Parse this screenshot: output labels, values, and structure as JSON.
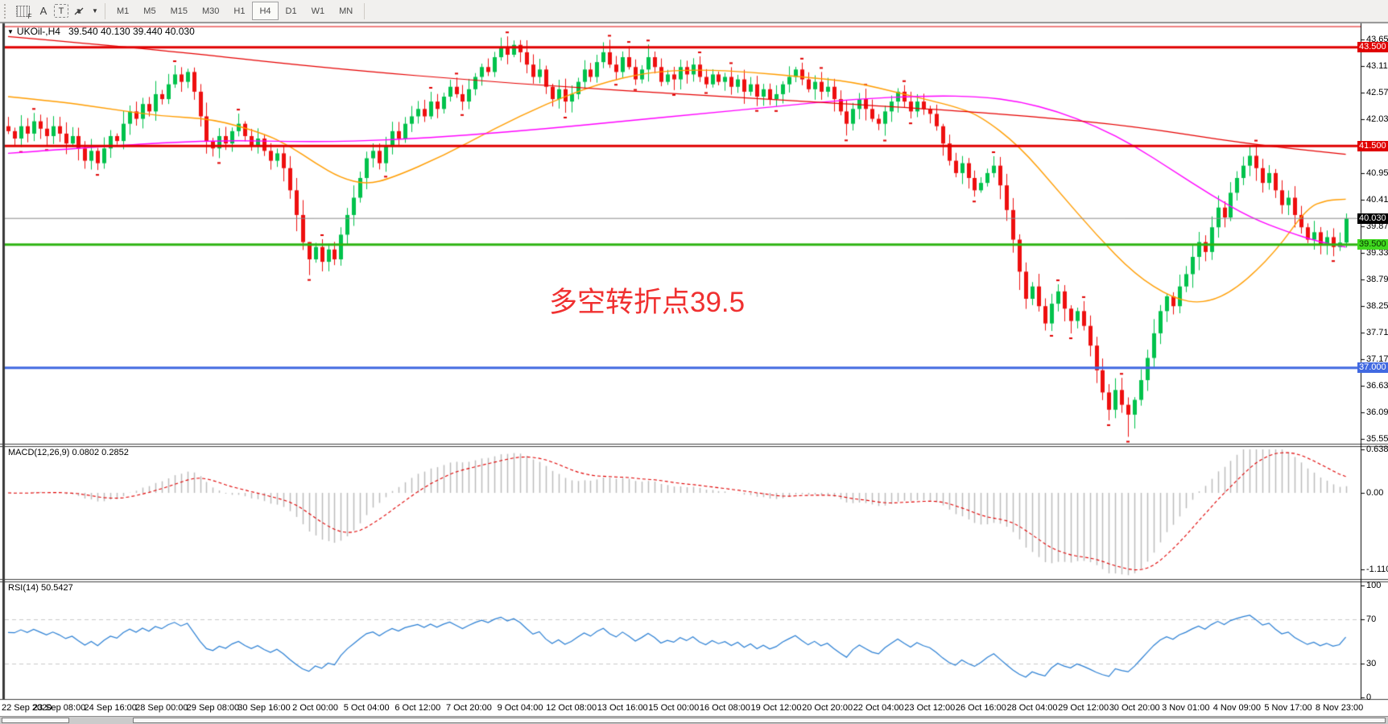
{
  "header": {
    "symbol": "UKOil-,H4",
    "ohlc": "39.540 40.130 39.440 40.030"
  },
  "annotation": {
    "text": "多空转折点39.5",
    "color": "#f03030"
  },
  "toolbar": {
    "tools": [
      {
        "name": "grid-properties-icon",
        "glyph": "F"
      },
      {
        "name": "font-a-icon",
        "glyph": "A"
      },
      {
        "name": "text-label-icon",
        "glyph": "T"
      },
      {
        "name": "arrows-objects-icon",
        "glyph": "arrows"
      },
      {
        "name": "objects-dropdown-caret",
        "glyph": "▼"
      }
    ],
    "timeframes": [
      "M1",
      "M5",
      "M15",
      "M30",
      "H1",
      "H4",
      "D1",
      "W1",
      "MN"
    ],
    "active_timeframe": "H4"
  },
  "chart_data": [
    {
      "type": "candlestick",
      "symbol": "UKOil-",
      "timeframe": "H4",
      "title": "UKOil-,H4",
      "current_bar": {
        "open": 39.54,
        "high": 40.13,
        "low": 39.44,
        "close": 40.03
      },
      "ylim": [
        35.46,
        43.97
      ],
      "y_ticks": [
        "43.655",
        "43.115",
        "42.575",
        "42.035",
        "40.955",
        "40.415",
        "39.875",
        "39.335",
        "38.795",
        "38.255",
        "37.715",
        "37.175",
        "36.635",
        "36.095",
        "35.555"
      ],
      "x_labels": [
        "22 Sep 2020",
        "23 Sep 08:00",
        "24 Sep 16:00",
        "28 Sep 00:00",
        "29 Sep 08:00",
        "30 Sep 16:00",
        "2 Oct 00:00",
        "5 Oct 04:00",
        "6 Oct 12:00",
        "7 Oct 20:00",
        "9 Oct 04:00",
        "12 Oct 08:00",
        "13 Oct 16:00",
        "15 Oct 00:00",
        "16 Oct 08:00",
        "19 Oct 12:00",
        "20 Oct 20:00",
        "22 Oct 04:00",
        "23 Oct 12:00",
        "26 Oct 16:00",
        "28 Oct 04:00",
        "29 Oct 12:00",
        "30 Oct 20:00",
        "3 Nov 01:00",
        "4 Nov 09:00",
        "5 Nov 17:00",
        "8 Nov 23:00"
      ],
      "bars_per_label": 8,
      "up_color": "#00c24b",
      "down_color": "#ee0f0f",
      "fractal_color": "#e00000",
      "open_first": 41.9,
      "closes": [
        41.8,
        41.65,
        41.9,
        41.75,
        42.0,
        41.85,
        41.7,
        41.9,
        41.75,
        41.55,
        41.7,
        41.45,
        41.2,
        41.4,
        41.15,
        41.45,
        41.7,
        41.6,
        41.95,
        42.2,
        42.05,
        42.35,
        42.2,
        42.55,
        42.45,
        42.75,
        42.95,
        42.8,
        43.0,
        42.6,
        42.1,
        41.6,
        41.45,
        41.7,
        41.55,
        41.8,
        41.95,
        41.7,
        41.5,
        41.65,
        41.4,
        41.2,
        41.35,
        41.05,
        40.6,
        40.1,
        39.55,
        39.2,
        39.45,
        39.15,
        39.4,
        39.2,
        39.7,
        40.1,
        40.45,
        40.85,
        41.25,
        41.4,
        41.15,
        41.5,
        41.8,
        41.65,
        41.95,
        42.1,
        42.25,
        42.1,
        42.4,
        42.25,
        42.5,
        42.7,
        42.55,
        42.4,
        42.65,
        42.9,
        43.1,
        43.0,
        43.3,
        43.5,
        43.35,
        43.55,
        43.4,
        43.15,
        42.9,
        43.05,
        42.7,
        42.45,
        42.65,
        42.4,
        42.55,
        42.8,
        43.05,
        42.9,
        43.2,
        43.4,
        43.15,
        43.0,
        43.3,
        43.1,
        42.85,
        43.05,
        43.3,
        43.1,
        42.8,
        42.95,
        42.85,
        43.1,
        42.95,
        43.15,
        42.9,
        42.75,
        42.95,
        42.8,
        42.9,
        42.7,
        42.85,
        42.6,
        42.75,
        42.5,
        42.65,
        42.45,
        42.55,
        42.75,
        42.9,
        43.05,
        42.85,
        42.65,
        42.8,
        42.6,
        42.7,
        42.45,
        42.2,
        41.95,
        42.25,
        42.45,
        42.25,
        42.05,
        41.95,
        42.2,
        42.4,
        42.6,
        42.4,
        42.2,
        42.4,
        42.25,
        42.15,
        41.9,
        41.55,
        41.2,
        40.95,
        41.15,
        40.85,
        40.6,
        40.75,
        40.95,
        41.1,
        40.7,
        40.2,
        39.6,
        38.95,
        38.4,
        38.65,
        38.25,
        37.9,
        38.3,
        38.55,
        38.2,
        37.95,
        38.15,
        37.85,
        37.45,
        36.95,
        36.5,
        36.15,
        36.55,
        36.25,
        36.05,
        36.35,
        36.75,
        37.2,
        37.7,
        38.15,
        38.45,
        38.25,
        38.65,
        38.9,
        39.25,
        39.55,
        39.35,
        39.85,
        40.25,
        40.05,
        40.55,
        40.85,
        41.1,
        41.3,
        41.05,
        40.75,
        40.95,
        40.6,
        40.3,
        40.45,
        40.1,
        39.85,
        39.6,
        39.75,
        39.5,
        39.65,
        39.45,
        39.54,
        40.03
      ],
      "wick_overrides": {
        "47": [
          39.55,
          38.88
        ],
        "79": [
          43.64,
          43.3
        ],
        "175": [
          36.4,
          35.6
        ],
        "209": [
          40.13,
          39.44
        ]
      },
      "horizontal_lines": [
        {
          "price": 43.92,
          "label": null,
          "color": "#e00000",
          "width": 1
        },
        {
          "price": 43.5,
          "label": "43.500",
          "color": "#e00000",
          "width": 3,
          "tag_bg": "#e00000",
          "tag_fg": "#ffffff"
        },
        {
          "price": 41.5,
          "label": "41.500",
          "color": "#e00000",
          "width": 3,
          "tag_bg": "#e00000",
          "tag_fg": "#ffffff"
        },
        {
          "price": 40.03,
          "label": "40.030",
          "color": "#8a8a8a",
          "width": 1,
          "tag_bg": "#000000",
          "tag_fg": "#ffffff"
        },
        {
          "price": 39.5,
          "label": "39.500",
          "color": "#2eb412",
          "width": 3,
          "tag_bg": "#40d920",
          "tag_fg": "#083300"
        },
        {
          "price": 37.0,
          "label": "37.000",
          "color": "#4169e1",
          "width": 3,
          "tag_bg": "#4169e1",
          "tag_fg": "#ffffff"
        }
      ],
      "moving_averages": [
        {
          "name": "ma-fast-orange",
          "color": "#ff9d00",
          "width": 1.4,
          "points": [
            [
              0,
              42.5
            ],
            [
              8,
              42.4
            ],
            [
              16,
              42.25
            ],
            [
              24,
              42.1
            ],
            [
              32,
              42.05
            ],
            [
              40,
              41.75
            ],
            [
              44,
              41.5
            ],
            [
              48,
              41.15
            ],
            [
              52,
              40.85
            ],
            [
              56,
              40.72
            ],
            [
              60,
              40.85
            ],
            [
              68,
              41.3
            ],
            [
              76,
              41.85
            ],
            [
              84,
              42.35
            ],
            [
              92,
              42.75
            ],
            [
              100,
              43.0
            ],
            [
              108,
              43.05
            ],
            [
              116,
              43.0
            ],
            [
              124,
              42.9
            ],
            [
              132,
              42.8
            ],
            [
              140,
              42.55
            ],
            [
              148,
              42.3
            ],
            [
              152,
              42.1
            ],
            [
              158,
              41.5
            ],
            [
              164,
              40.6
            ],
            [
              170,
              39.7
            ],
            [
              176,
              38.9
            ],
            [
              182,
              38.4
            ],
            [
              187,
              38.3
            ],
            [
              192,
              38.6
            ],
            [
              198,
              39.35
            ],
            [
              203,
              40.25
            ],
            [
              206,
              40.4
            ],
            [
              209,
              40.42
            ]
          ]
        },
        {
          "name": "ma-mid-magenta",
          "color": "#ff00ff",
          "width": 1.4,
          "points": [
            [
              0,
              41.35
            ],
            [
              16,
              41.5
            ],
            [
              32,
              41.62
            ],
            [
              48,
              41.58
            ],
            [
              60,
              41.62
            ],
            [
              72,
              41.72
            ],
            [
              84,
              41.85
            ],
            [
              96,
              42.0
            ],
            [
              108,
              42.15
            ],
            [
              120,
              42.3
            ],
            [
              132,
              42.45
            ],
            [
              144,
              42.52
            ],
            [
              152,
              42.5
            ],
            [
              158,
              42.4
            ],
            [
              164,
              42.2
            ],
            [
              170,
              41.9
            ],
            [
              176,
              41.5
            ],
            [
              182,
              41.0
            ],
            [
              188,
              40.5
            ],
            [
              194,
              40.05
            ],
            [
              200,
              39.75
            ],
            [
              205,
              39.55
            ],
            [
              209,
              39.45
            ]
          ]
        },
        {
          "name": "ma-slow-red",
          "color": "#e60000",
          "width": 1.2,
          "points": [
            [
              0,
              43.72
            ],
            [
              24,
              43.45
            ],
            [
              48,
              43.1
            ],
            [
              80,
              42.75
            ],
            [
              112,
              42.5
            ],
            [
              144,
              42.25
            ],
            [
              160,
              42.1
            ],
            [
              176,
              41.9
            ],
            [
              193,
              41.55
            ],
            [
              209,
              41.33
            ]
          ]
        }
      ]
    },
    {
      "type": "macd",
      "display": "MACD(12,26,9) 0.0802 0.2852",
      "params": [
        12,
        26,
        9
      ],
      "value": 0.0802,
      "signal": 0.2852,
      "axis_labels": [
        "0.6386",
        "0.00",
        "-1.1104"
      ],
      "axis_values": [
        0.6386,
        0,
        -1.1104
      ],
      "hist_color": "#bcbcbc",
      "signal_color": "#e00000"
    },
    {
      "type": "rsi",
      "display": "RSI(14) 50.5427",
      "period": 14,
      "value": 50.5427,
      "levels": [
        70,
        30
      ],
      "axis_labels": [
        "100",
        "70",
        "30",
        "0"
      ],
      "axis_values": [
        100,
        70,
        30,
        0
      ],
      "line_color": "#2a7fd4",
      "level_color": "#c9c9c9"
    }
  ]
}
